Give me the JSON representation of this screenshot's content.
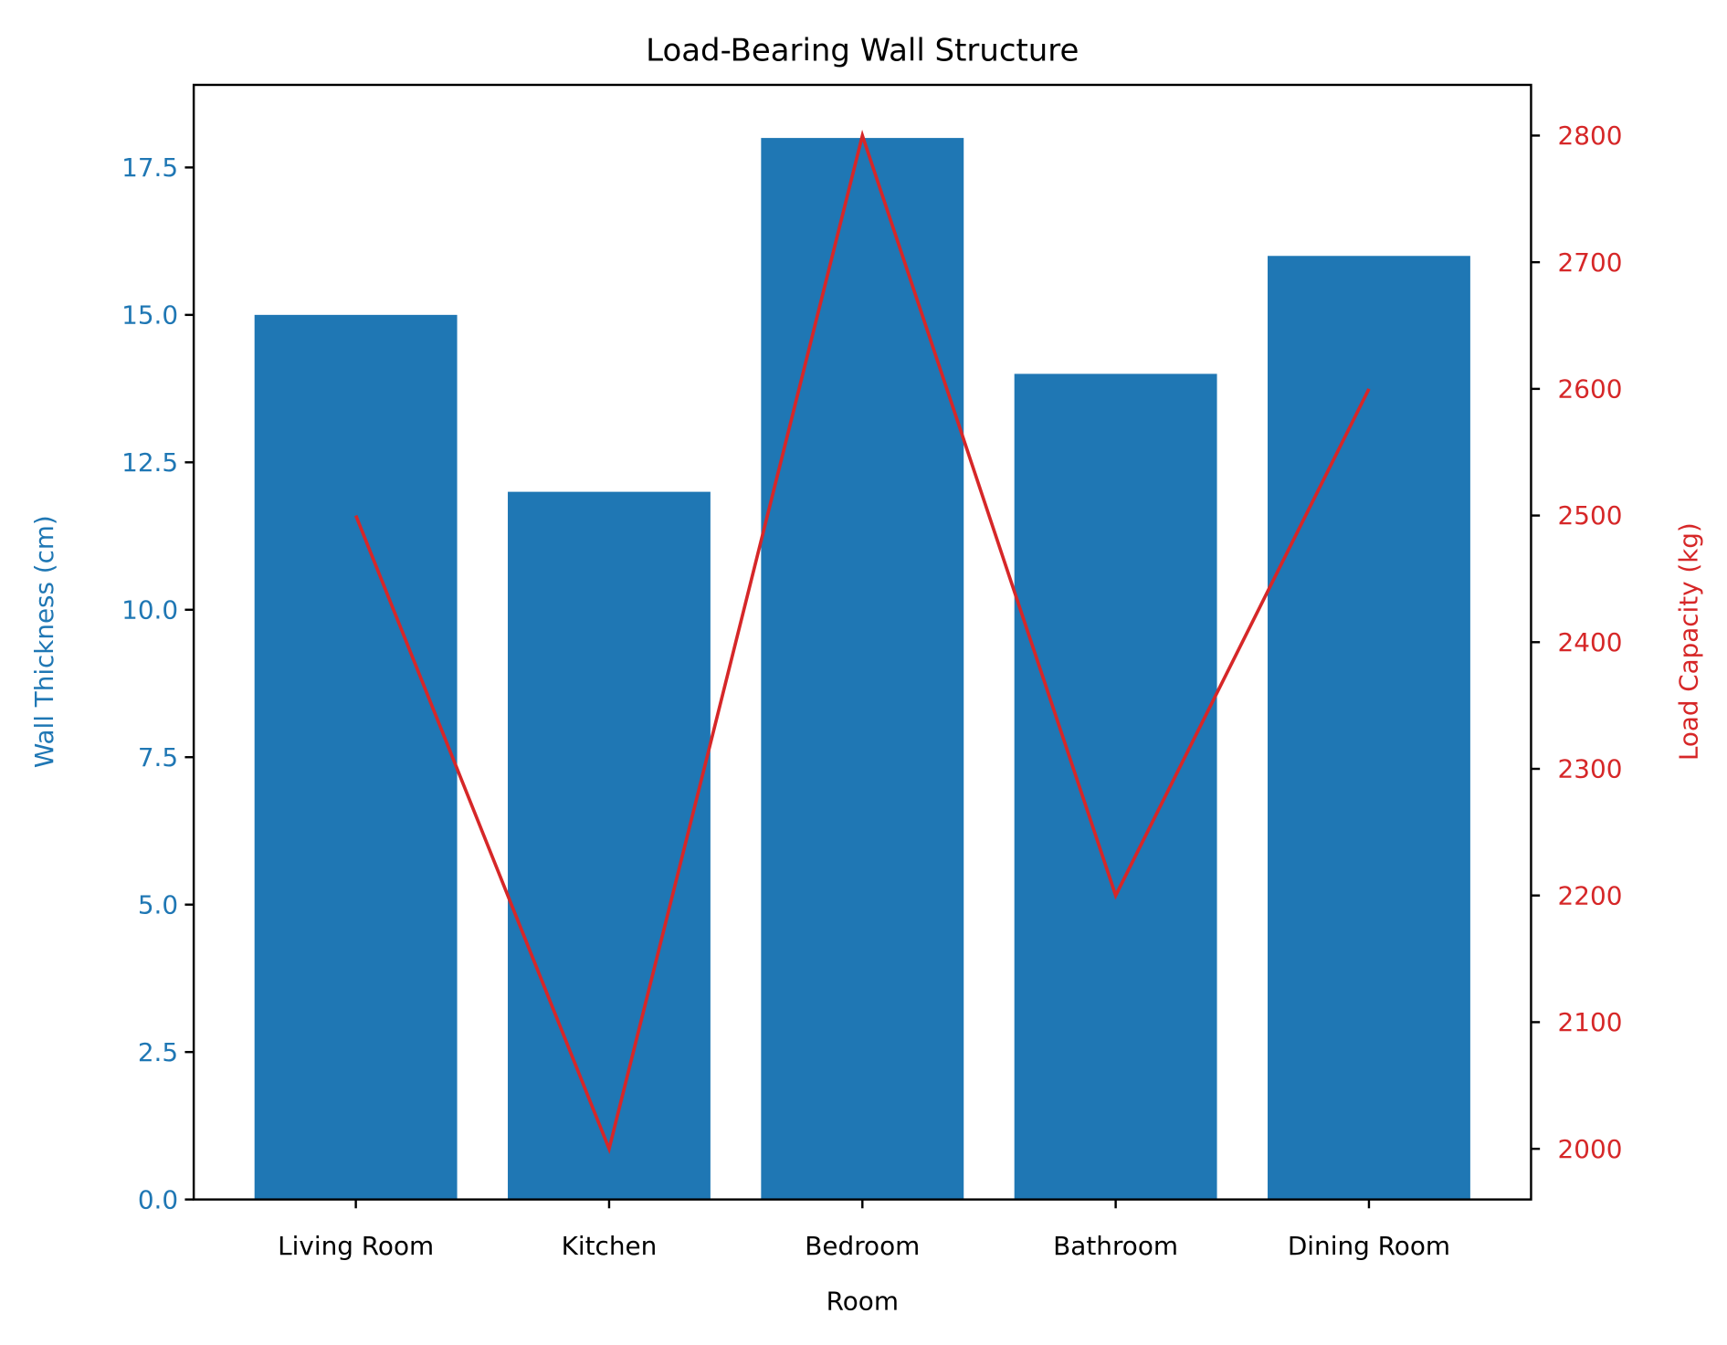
{
  "chart_data": {
    "type": "bar+line",
    "title": "Load-Bearing Wall Structure",
    "xlabel": "Room",
    "categories": [
      "Living Room",
      "Kitchen",
      "Bedroom",
      "Bathroom",
      "Dining Room"
    ],
    "series": [
      {
        "axis": "left",
        "type": "bar",
        "color": "#1f77b4",
        "values": [
          15,
          12,
          18,
          14,
          16
        ]
      },
      {
        "axis": "right",
        "type": "line",
        "color": "#d62728",
        "values": [
          2500,
          2000,
          2800,
          2200,
          2600
        ]
      }
    ],
    "left_axis": {
      "label": "Wall Thickness (cm)",
      "color": "#1f77b4",
      "ylim": [
        0,
        18.9
      ],
      "ticks": [
        "0.0",
        "2.5",
        "5.0",
        "7.5",
        "10.0",
        "12.5",
        "15.0",
        "17.5"
      ]
    },
    "right_axis": {
      "label": "Load Capacity (kg)",
      "color": "#d62728",
      "ylim": [
        1960,
        2840
      ],
      "ticks": [
        "2000",
        "2100",
        "2200",
        "2300",
        "2400",
        "2500",
        "2600",
        "2700",
        "2800"
      ]
    },
    "xlim": [
      -0.64,
      4.64
    ],
    "grid": false,
    "legend": "none"
  }
}
